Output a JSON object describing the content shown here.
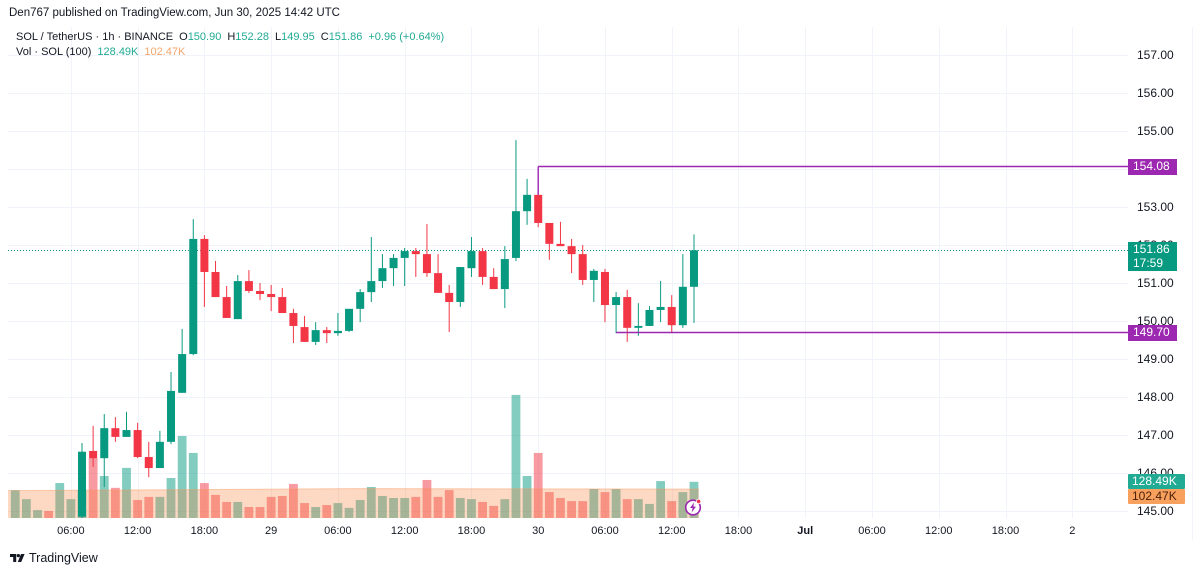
{
  "header": {
    "published_text": "Den767 published on TradingView.com, Jun 30, 2025 14:42 UTC"
  },
  "legend": {
    "symbol": "SOL / TetherUS · 1h · BINANCE",
    "open_label": "O",
    "open": "150.90",
    "high_label": "H",
    "high": "152.28",
    "low_label": "L",
    "low": "149.95",
    "close_label": "C",
    "close": "151.86",
    "change": "+0.96 (+0.64%)",
    "volume_label": "Vol · SOL (100)",
    "volume_value": "128.49K",
    "volume_ma_value": "102.47K"
  },
  "price_axis": {
    "current_price": "151.86",
    "countdown": "17:59",
    "volume_label": "128.49K",
    "volume_ma_label": "102.47K"
  },
  "footer": {
    "logo_text": "TradingView"
  },
  "icons": {
    "alert_icon": "lightning-bolt-icon",
    "logo_icon": "tradingview-logo-icon"
  },
  "colors": {
    "up": "#089981",
    "down": "#f23645",
    "volume_up": "rgba(8,153,129,0.5)",
    "volume_down": "rgba(242,54,69,0.5)",
    "volume_ma_fill": "rgba(247,128,60,0.3)",
    "drawing_line": "#9c27b0",
    "grid": "#f0f3fa",
    "text": "#131722"
  },
  "chart_data": {
    "type": "candlestick",
    "title": "SOL / TetherUS · 1h · BINANCE",
    "interval": "1h",
    "xlabel": "",
    "ylabel": "Price (USDT)",
    "ylim": [
      144.7,
      157.7
    ],
    "grid": true,
    "y_ticks": [
      157,
      156,
      155,
      154,
      153,
      152,
      151,
      150,
      149,
      148,
      147,
      146,
      145
    ],
    "y_tick_labels": [
      "157.00",
      "156.00",
      "155.00",
      "154.00",
      "153.00",
      "152.00",
      "151.00",
      "150.00",
      "149.00",
      "148.00",
      "147.00",
      "146.00",
      "145.00"
    ],
    "x_ticks": [
      {
        "label": "06:00",
        "index": -1
      },
      {
        "label": "12:00",
        "index": 5
      },
      {
        "label": "18:00",
        "index": 11
      },
      {
        "label": "29",
        "index": 17
      },
      {
        "label": "06:00",
        "index": 23
      },
      {
        "label": "12:00",
        "index": 29
      },
      {
        "label": "18:00",
        "index": 35
      },
      {
        "label": "30",
        "index": 41
      },
      {
        "label": "06:00",
        "index": 47
      },
      {
        "label": "12:00",
        "index": 53
      },
      {
        "label": "18:00",
        "index": 59
      },
      {
        "label": "Jul",
        "index": 65,
        "bold": true
      },
      {
        "label": "06:00",
        "index": 71
      },
      {
        "label": "12:00",
        "index": 77
      },
      {
        "label": "18:00",
        "index": 83
      },
      {
        "label": "2",
        "index": 89
      }
    ],
    "candles": {
      "name": "SOL / TetherUS",
      "first_bar": "Jun 28 07:00",
      "fields": [
        "open",
        "high",
        "low",
        "close"
      ],
      "ohlc": [
        [
          144.85,
          146.79,
          144.8,
          146.56
        ],
        [
          146.58,
          147.24,
          146.16,
          146.39
        ],
        [
          146.39,
          147.55,
          145.63,
          147.18
        ],
        [
          147.18,
          147.47,
          146.82,
          146.95
        ],
        [
          146.95,
          147.61,
          146.95,
          147.13
        ],
        [
          147.13,
          147.32,
          146.39,
          146.42
        ],
        [
          146.42,
          146.82,
          145.89,
          146.13
        ],
        [
          146.13,
          147.11,
          146.13,
          146.82
        ],
        [
          146.82,
          148.66,
          146.76,
          148.16
        ],
        [
          148.11,
          149.79,
          148.11,
          149.13
        ],
        [
          149.13,
          152.68,
          149.1,
          152.16
        ],
        [
          152.16,
          152.26,
          150.37,
          151.29
        ],
        [
          151.29,
          151.58,
          150.63,
          150.63
        ],
        [
          150.63,
          150.92,
          150.08,
          150.08
        ],
        [
          150.05,
          151.21,
          150.05,
          151.05
        ],
        [
          151.05,
          151.34,
          150.74,
          150.79
        ],
        [
          150.79,
          151.0,
          150.55,
          150.71
        ],
        [
          150.71,
          150.95,
          150.26,
          150.63
        ],
        [
          150.63,
          150.87,
          150.21,
          150.21
        ],
        [
          150.21,
          150.32,
          149.42,
          149.87
        ],
        [
          149.84,
          150.13,
          149.45,
          149.45
        ],
        [
          149.45,
          149.97,
          149.37,
          149.76
        ],
        [
          149.76,
          149.84,
          149.42,
          149.68
        ],
        [
          149.68,
          150.21,
          149.61,
          149.74
        ],
        [
          149.74,
          150.32,
          149.71,
          150.32
        ],
        [
          150.32,
          150.84,
          149.97,
          150.76
        ],
        [
          150.76,
          152.21,
          150.5,
          151.05
        ],
        [
          151.05,
          151.76,
          150.87,
          151.39
        ],
        [
          151.39,
          151.76,
          150.92,
          151.66
        ],
        [
          151.66,
          151.92,
          150.92,
          151.84
        ],
        [
          151.84,
          151.92,
          151.16,
          151.76
        ],
        [
          151.76,
          152.55,
          151.16,
          151.26
        ],
        [
          151.26,
          151.76,
          150.74,
          150.74
        ],
        [
          150.74,
          150.95,
          149.71,
          150.5
        ],
        [
          150.5,
          151.42,
          150.37,
          151.42
        ],
        [
          151.39,
          152.21,
          151.16,
          151.84
        ],
        [
          151.84,
          151.92,
          150.95,
          151.16
        ],
        [
          151.16,
          151.39,
          150.84,
          150.84
        ],
        [
          150.84,
          151.97,
          150.34,
          151.63
        ],
        [
          151.66,
          154.76,
          151.58,
          152.89
        ],
        [
          152.89,
          153.74,
          152.53,
          153.32
        ],
        [
          153.32,
          153.32,
          152.47,
          152.58
        ],
        [
          152.58,
          152.58,
          151.61,
          152.03
        ],
        [
          152.03,
          152.61,
          151.97,
          151.97
        ],
        [
          151.97,
          152.16,
          151.26,
          151.76
        ],
        [
          151.76,
          152.0,
          150.95,
          151.08
        ],
        [
          151.08,
          151.37,
          150.5,
          151.32
        ],
        [
          151.29,
          151.37,
          149.97,
          150.42
        ],
        [
          150.42,
          150.76,
          149.68,
          150.63
        ],
        [
          150.63,
          150.82,
          149.45,
          149.82
        ],
        [
          149.82,
          150.47,
          149.61,
          149.87
        ],
        [
          149.87,
          150.39,
          149.87,
          150.29
        ],
        [
          150.29,
          151.05,
          149.97,
          150.37
        ],
        [
          150.37,
          150.68,
          149.68,
          149.89
        ],
        [
          149.89,
          151.76,
          149.82,
          150.9
        ],
        [
          150.9,
          152.28,
          149.95,
          151.86
        ]
      ]
    },
    "volume": {
      "name": "Vol · SOL",
      "unit": "K",
      "first_bar": "Jun 28 01:00",
      "offset_from_candles": -6,
      "values": [
        99,
        67,
        28,
        25,
        124,
        67,
        99,
        213,
        149,
        107,
        178,
        64,
        75,
        75,
        142,
        291,
        231,
        124,
        82,
        57,
        57,
        39,
        39,
        75,
        78,
        121,
        53,
        39,
        46,
        53,
        36,
        64,
        110,
        78,
        71,
        71,
        75,
        135,
        75,
        99,
        71,
        67,
        57,
        43,
        67,
        437,
        149,
        231,
        92,
        71,
        60,
        60,
        103,
        92,
        103,
        67,
        67,
        50,
        131,
        60,
        92,
        128.49
      ],
      "directions": [
        "up",
        "up",
        "up",
        "down",
        "up",
        "up"
      ],
      "ma_length": 100,
      "ma_value": 102.47
    },
    "current_price_line": 151.86,
    "horizontal_lines": [
      {
        "label": "154.08",
        "price": 154.08,
        "from_index": 41,
        "anchor_price": 153.32
      },
      {
        "label": "149.70",
        "price": 149.7,
        "from_index": 48,
        "anchor_price": null
      }
    ]
  }
}
